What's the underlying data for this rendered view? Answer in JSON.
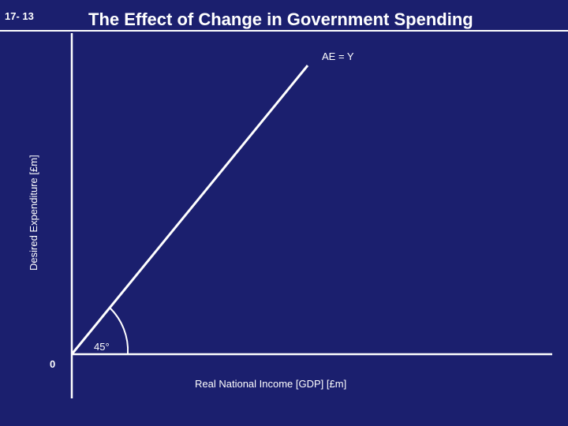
{
  "slide": {
    "number": "17- 13",
    "title": "The Effect of Change in Government Spending"
  },
  "diagram": {
    "line_label": "AE = Y",
    "angle_label": "45°",
    "origin_label": "0",
    "x_axis_label": "Real National Income [GDP] [£m]",
    "y_axis_label": "Desired Expenditure [£m]"
  },
  "colors": {
    "background": "#1b1f6e",
    "foreground": "#ffffff"
  }
}
